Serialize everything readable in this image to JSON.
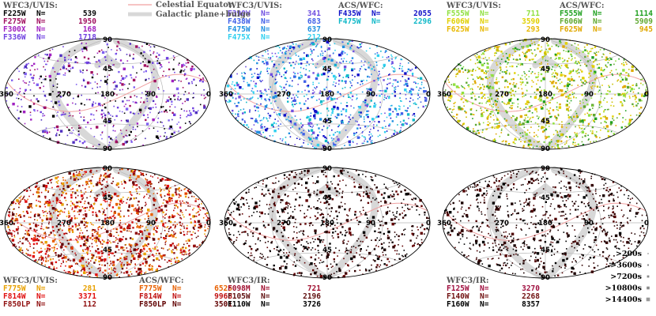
{
  "legend": {
    "celestial_equator": "Celestial Equator",
    "galactic_plane": "Galactic plane+bulge",
    "equator_color": "#f0a0a0",
    "plane_color": "#d8d8d8"
  },
  "exposure_legend": [
    ">200s",
    ">3600s",
    ">7200s",
    ">10800s",
    ">14400s"
  ],
  "ticks": {
    "lon": [
      "360",
      "270",
      "180",
      "90",
      "0"
    ],
    "lat": [
      "90",
      "45",
      "45",
      "90"
    ]
  },
  "panels": [
    {
      "id": "uvis-blue",
      "groups": [
        {
          "header": "WFC3/UVIS:",
          "filters": [
            {
              "name": "F225W",
              "n_label": "N=",
              "n": "539",
              "color": "#000000"
            },
            {
              "name": "F275W",
              "n_label": "N=",
              "n": "1950",
              "color": "#a01060"
            },
            {
              "name": "F300X",
              "n_label": "N=",
              "n": "168",
              "color": "#a020c0"
            },
            {
              "name": "F336W",
              "n_label": "N=",
              "n": "1718",
              "color": "#7040e0"
            }
          ]
        }
      ]
    },
    {
      "id": "blue-cyan",
      "groups": [
        {
          "header": "WFC3/UVIS:",
          "filters": [
            {
              "name": "F390W",
              "n_label": "N=",
              "n": "341",
              "color": "#7050e0"
            },
            {
              "name": "F438W",
              "n_label": "N=",
              "n": "683",
              "color": "#4060e8"
            },
            {
              "name": "F475W",
              "n_label": "N=",
              "n": "637",
              "color": "#2090e0"
            },
            {
              "name": "F475X",
              "n_label": "N=",
              "n": "212",
              "color": "#30d0f0"
            }
          ]
        },
        {
          "header": "ACS/WFC:",
          "filters": [
            {
              "name": "F435W",
              "n_label": "N=",
              "n": "2055",
              "color": "#1010c8"
            },
            {
              "name": "F475W",
              "n_label": "N=",
              "n": "2296",
              "color": "#10b8c8"
            }
          ]
        }
      ]
    },
    {
      "id": "green-yellow",
      "groups": [
        {
          "header": "WFC3/UVIS:",
          "filters": [
            {
              "name": "F555W",
              "n_label": "N=",
              "n": "711",
              "color": "#90e040"
            },
            {
              "name": "F606W",
              "n_label": "N=",
              "n": "3590",
              "color": "#e0d000"
            },
            {
              "name": "F625W",
              "n_label": "N=",
              "n": "293",
              "color": "#e8b800"
            }
          ]
        },
        {
          "header": "ACS/WFC:",
          "filters": [
            {
              "name": "F555W",
              "n_label": "N=",
              "n": "1114",
              "color": "#20a020"
            },
            {
              "name": "F606W",
              "n_label": "N=",
              "n": "5909",
              "color": "#60a830"
            },
            {
              "name": "F625W",
              "n_label": "N=",
              "n": "945",
              "color": "#e0a800"
            }
          ]
        }
      ]
    },
    {
      "id": "red",
      "groups": [
        {
          "header": "WFC3/UVIS:",
          "filters": [
            {
              "name": "F775W",
              "n_label": "N=",
              "n": "281",
              "color": "#e8a000"
            },
            {
              "name": "F814W",
              "n_label": "N=",
              "n": "3371",
              "color": "#e01010"
            },
            {
              "name": "F850LP",
              "n_label": "N=",
              "n": "112",
              "color": "#901010"
            }
          ]
        },
        {
          "header": "ACS/WFC:",
          "filters": [
            {
              "name": "F775W",
              "n_label": "N=",
              "n": "6525",
              "color": "#e86000"
            },
            {
              "name": "F814W",
              "n_label": "N=",
              "n": "9968",
              "color": "#c01010"
            },
            {
              "name": "F850LP",
              "n_label": "N=",
              "n": "3501",
              "color": "#600000"
            }
          ]
        }
      ]
    },
    {
      "id": "ir-1",
      "groups": [
        {
          "header": "WFC3/IR:",
          "filters": [
            {
              "name": "F098M",
              "n_label": "N=",
              "n": "721",
              "color": "#a01030"
            },
            {
              "name": "F105W",
              "n_label": "N=",
              "n": "2196",
              "color": "#601010"
            },
            {
              "name": "F110W",
              "n_label": "N=",
              "n": "3726",
              "color": "#000000"
            }
          ]
        }
      ]
    },
    {
      "id": "ir-2",
      "groups": [
        {
          "header": "WFC3/IR:",
          "filters": [
            {
              "name": "F125W",
              "n_label": "N=",
              "n": "3270",
              "color": "#a01040"
            },
            {
              "name": "F140W",
              "n_label": "N=",
              "n": "2268",
              "color": "#701010"
            },
            {
              "name": "F160W",
              "n_label": "N=",
              "n": "8357",
              "color": "#000000"
            }
          ]
        }
      ]
    }
  ]
}
